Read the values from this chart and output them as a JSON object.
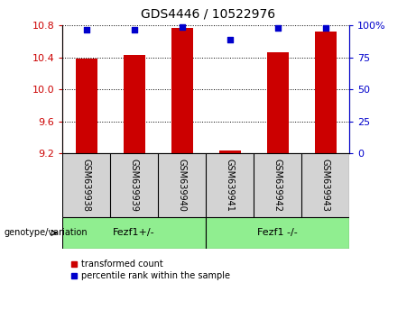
{
  "title": "GDS4446 / 10522976",
  "samples": [
    "GSM639938",
    "GSM639939",
    "GSM639940",
    "GSM639941",
    "GSM639942",
    "GSM639943"
  ],
  "transformed_count": [
    10.38,
    10.43,
    10.77,
    9.23,
    10.47,
    10.72
  ],
  "percentile_rank": [
    97,
    97,
    99,
    89,
    98,
    98
  ],
  "ylim_left": [
    9.2,
    10.8
  ],
  "ylim_right": [
    0,
    100
  ],
  "yticks_left": [
    9.2,
    9.6,
    10.0,
    10.4,
    10.8
  ],
  "yticks_right": [
    0,
    25,
    50,
    75,
    100
  ],
  "ytick_labels_right": [
    "0",
    "25",
    "50",
    "75",
    "100%"
  ],
  "bar_color": "#cc0000",
  "dot_color": "#0000cc",
  "bar_width": 0.45,
  "group1_label": "Fezf1+/-",
  "group2_label": "Fezf1 -/-",
  "group1_indices": [
    0,
    1,
    2
  ],
  "group2_indices": [
    3,
    4,
    5
  ],
  "group_color": "#90ee90",
  "xlabel_label": "genotype/variation",
  "legend_red_label": "transformed count",
  "legend_blue_label": "percentile rank within the sample",
  "tick_color_left": "#cc0000",
  "tick_color_right": "#0000cc",
  "sample_bg_color": "#d3d3d3",
  "title_fontsize": 10,
  "axis_fontsize": 8,
  "sample_fontsize": 7,
  "group_fontsize": 8,
  "legend_fontsize": 7
}
